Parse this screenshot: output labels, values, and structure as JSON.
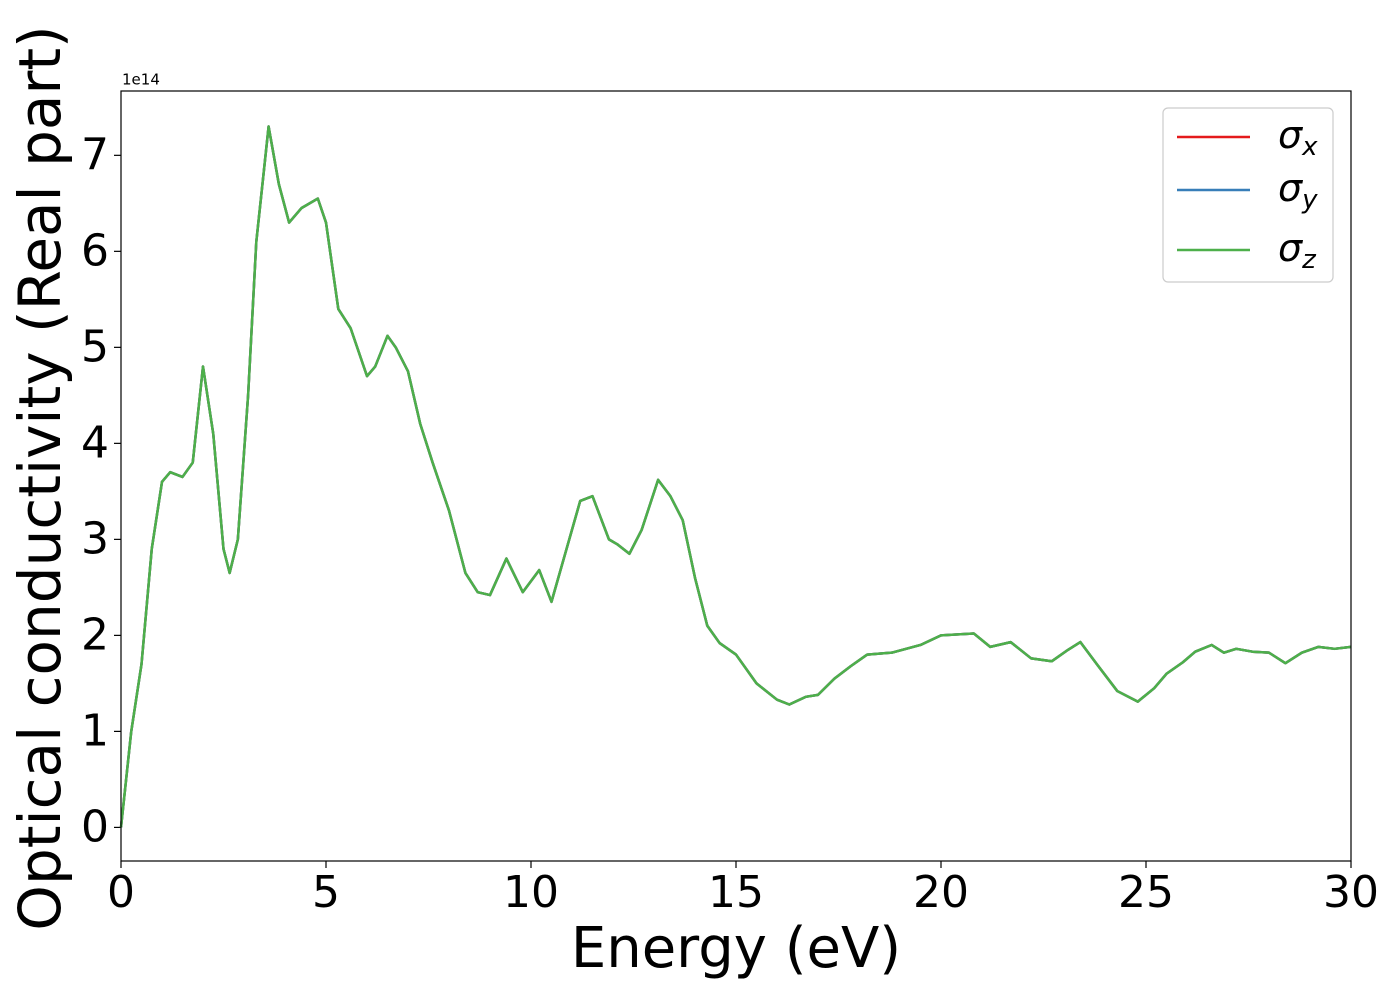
{
  "chart_data": {
    "type": "line",
    "x_label": "Energy (eV)",
    "y_label": "Optical conductivity (Real part)",
    "y_offset_text": "1e14",
    "xlim": [
      0,
      30
    ],
    "xticks": [
      0,
      5,
      10,
      15,
      20,
      25,
      30
    ],
    "ylim": [
      -0.35,
      7.67
    ],
    "yticks": [
      0,
      1,
      2,
      3,
      4,
      5,
      6,
      7
    ],
    "legend": "upper right",
    "x": [
      0,
      0.25,
      0.5,
      0.75,
      1.0,
      1.2,
      1.5,
      1.75,
      2.0,
      2.25,
      2.5,
      2.65,
      2.85,
      3.1,
      3.3,
      3.6,
      3.85,
      4.1,
      4.4,
      4.8,
      5.0,
      5.3,
      5.6,
      6.0,
      6.2,
      6.5,
      6.7,
      7.0,
      7.3,
      7.6,
      8.0,
      8.4,
      8.7,
      9.0,
      9.4,
      9.8,
      10.2,
      10.5,
      10.8,
      11.2,
      11.5,
      11.9,
      12.1,
      12.4,
      12.7,
      13.1,
      13.4,
      13.7,
      14.0,
      14.3,
      14.6,
      15.0,
      15.5,
      16.0,
      16.3,
      16.7,
      17.0,
      17.4,
      17.8,
      18.2,
      18.8,
      19.5,
      20.0,
      20.8,
      21.2,
      21.7,
      22.2,
      22.7,
      23.1,
      23.4,
      23.8,
      24.3,
      24.8,
      25.2,
      25.5,
      25.9,
      26.2,
      26.6,
      26.9,
      27.2,
      27.6,
      28.0,
      28.4,
      28.8,
      29.2,
      29.6,
      30.0
    ],
    "series": [
      {
        "name": "σx",
        "color": "#e41a1c",
        "values": [
          0.0,
          1.0,
          1.7,
          2.9,
          3.6,
          3.7,
          3.65,
          3.8,
          4.8,
          4.1,
          2.9,
          2.65,
          3.0,
          4.5,
          6.1,
          7.3,
          6.7,
          6.3,
          6.45,
          6.55,
          6.3,
          5.4,
          5.2,
          4.7,
          4.8,
          5.12,
          5.0,
          4.75,
          4.2,
          3.8,
          3.3,
          2.65,
          2.45,
          2.42,
          2.8,
          2.45,
          2.68,
          2.35,
          2.8,
          3.4,
          3.45,
          3.0,
          2.95,
          2.85,
          3.1,
          3.62,
          3.45,
          3.2,
          2.6,
          2.1,
          1.92,
          1.8,
          1.5,
          1.33,
          1.28,
          1.36,
          1.38,
          1.55,
          1.68,
          1.8,
          1.82,
          1.9,
          2.0,
          2.02,
          1.88,
          1.93,
          1.76,
          1.73,
          1.85,
          1.93,
          1.7,
          1.42,
          1.31,
          1.45,
          1.6,
          1.72,
          1.83,
          1.9,
          1.82,
          1.86,
          1.83,
          1.82,
          1.71,
          1.82,
          1.88,
          1.86,
          1.88
        ]
      },
      {
        "name": "σy",
        "color": "#377eb8",
        "values": [
          0.0,
          1.0,
          1.7,
          2.9,
          3.6,
          3.7,
          3.65,
          3.8,
          4.8,
          4.1,
          2.9,
          2.65,
          3.0,
          4.5,
          6.1,
          7.3,
          6.7,
          6.3,
          6.45,
          6.55,
          6.3,
          5.4,
          5.2,
          4.7,
          4.8,
          5.12,
          5.0,
          4.75,
          4.2,
          3.8,
          3.3,
          2.65,
          2.45,
          2.42,
          2.8,
          2.45,
          2.68,
          2.35,
          2.8,
          3.4,
          3.45,
          3.0,
          2.95,
          2.85,
          3.1,
          3.62,
          3.45,
          3.2,
          2.6,
          2.1,
          1.92,
          1.8,
          1.5,
          1.33,
          1.28,
          1.36,
          1.38,
          1.55,
          1.68,
          1.8,
          1.82,
          1.9,
          2.0,
          2.02,
          1.88,
          1.93,
          1.76,
          1.73,
          1.85,
          1.93,
          1.7,
          1.42,
          1.31,
          1.45,
          1.6,
          1.72,
          1.83,
          1.9,
          1.82,
          1.86,
          1.83,
          1.82,
          1.71,
          1.82,
          1.88,
          1.86,
          1.88
        ]
      },
      {
        "name": "σz",
        "color": "#4daf4a",
        "values": [
          0.0,
          1.0,
          1.7,
          2.9,
          3.6,
          3.7,
          3.65,
          3.8,
          4.8,
          4.1,
          2.9,
          2.65,
          3.0,
          4.5,
          6.1,
          7.3,
          6.7,
          6.3,
          6.45,
          6.55,
          6.3,
          5.4,
          5.2,
          4.7,
          4.8,
          5.12,
          5.0,
          4.75,
          4.2,
          3.8,
          3.3,
          2.65,
          2.45,
          2.42,
          2.8,
          2.45,
          2.68,
          2.35,
          2.8,
          3.4,
          3.45,
          3.0,
          2.95,
          2.85,
          3.1,
          3.62,
          3.45,
          3.2,
          2.6,
          2.1,
          1.92,
          1.8,
          1.5,
          1.33,
          1.28,
          1.36,
          1.38,
          1.55,
          1.68,
          1.8,
          1.82,
          1.9,
          2.0,
          2.02,
          1.88,
          1.93,
          1.76,
          1.73,
          1.85,
          1.93,
          1.7,
          1.42,
          1.31,
          1.45,
          1.6,
          1.72,
          1.83,
          1.9,
          1.82,
          1.86,
          1.83,
          1.82,
          1.71,
          1.82,
          1.88,
          1.86,
          1.88
        ]
      }
    ]
  }
}
